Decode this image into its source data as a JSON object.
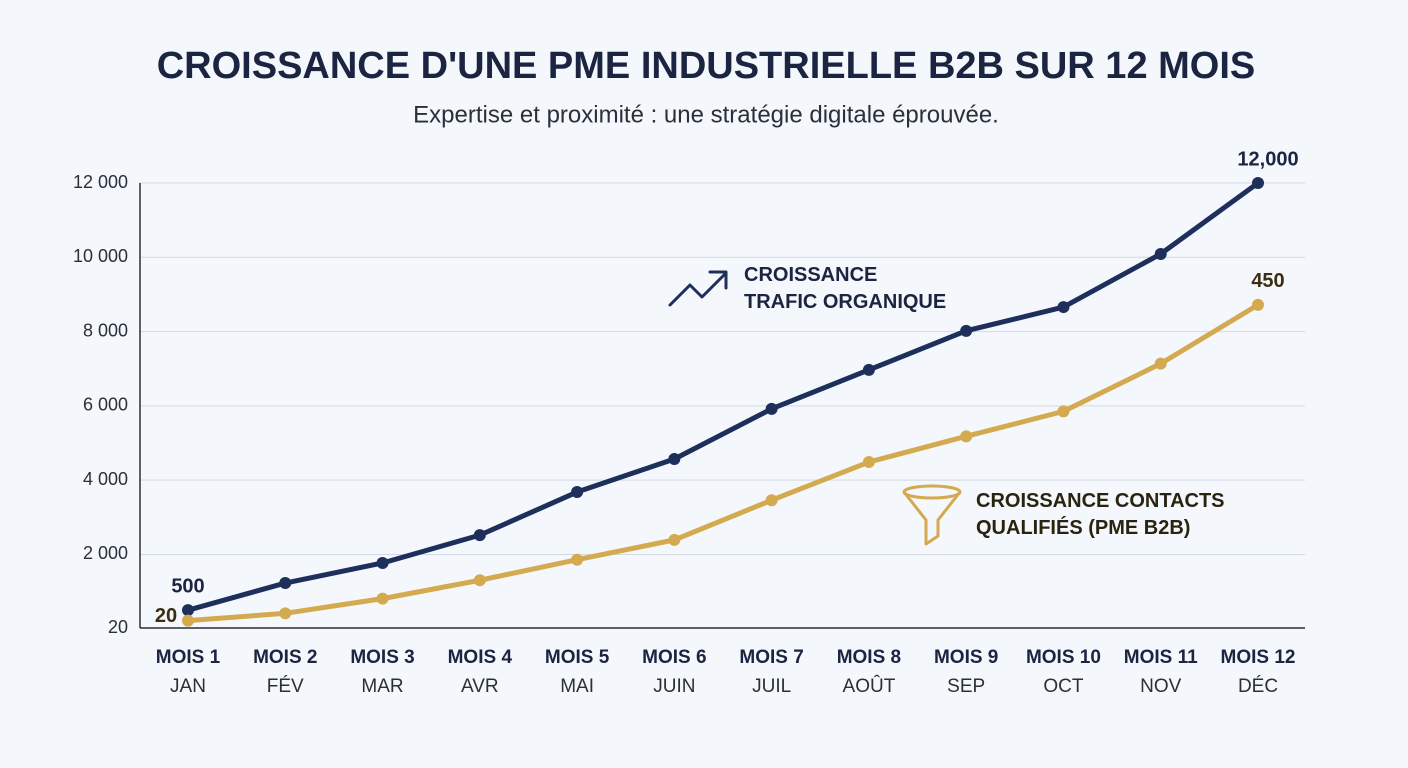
{
  "chart_data": {
    "type": "line",
    "title": "CROISSANCE D'UNE PME INDUSTRIELLE B2B SUR 12 MOIS",
    "subtitle": "Expertise et proximité : une stratégie digitale éprouvée.",
    "categories": [
      "MOIS 1",
      "MOIS 2",
      "MOIS 3",
      "MOIS 4",
      "MOIS 5",
      "MOIS 6",
      "MOIS 7",
      "MOIS 8",
      "MOIS 9",
      "MOIS 10",
      "MOIS 11",
      "MOIS 12"
    ],
    "category_sublabels": [
      "JAN",
      "FÉV",
      "MAR",
      "AVR",
      "MAI",
      "JUIN",
      "JUIL",
      "AOÛT",
      "SEP",
      "OCT",
      "NOV",
      "DÉC"
    ],
    "ylim": [
      20,
      12000
    ],
    "yticks": [
      20,
      {
        "value": 2000,
        "label": "2 000"
      },
      {
        "value": 4000,
        "label": "4 000"
      },
      {
        "value": 6000,
        "label": "6 000"
      },
      {
        "value": 8000,
        "label": "8 000"
      },
      {
        "value": 10000,
        "label": "10 000"
      },
      {
        "value": 12000,
        "label": "12 000"
      }
    ],
    "y2lim": [
      10,
      616
    ],
    "grid": true,
    "series": [
      {
        "name": "CROISSANCE TRAFIC ORGANIQUE",
        "color": "#1f2f5c",
        "values": [
          500,
          1230,
          1770,
          2520,
          3680,
          4570,
          5920,
          6970,
          8020,
          8660,
          10090,
          12000
        ],
        "value_labels": [
          "500",
          null,
          null,
          null,
          null,
          null,
          null,
          null,
          null,
          null,
          null,
          "12,000"
        ]
      },
      {
        "name": "CROISSANCE CONTACTS QUALIFIÉS (PME B2B)",
        "color": "#d4aa50",
        "axis": "y2",
        "values": [
          20,
          30,
          50,
          75,
          103,
          130,
          184,
          236,
          271,
          305,
          370,
          450
        ],
        "value_labels": [
          "20",
          null,
          null,
          null,
          null,
          null,
          null,
          null,
          null,
          null,
          null,
          "450"
        ]
      }
    ]
  }
}
